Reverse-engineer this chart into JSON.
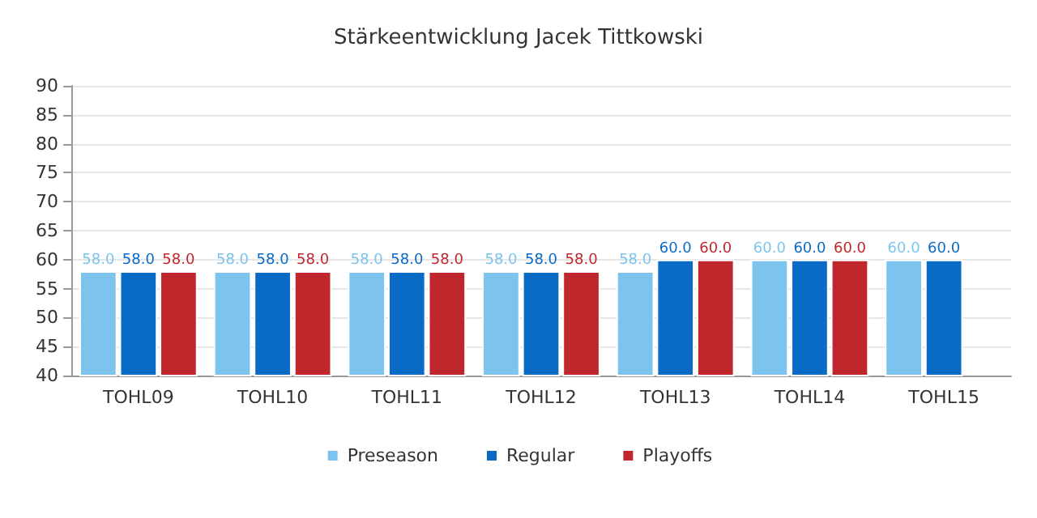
{
  "chart_data": {
    "type": "bar",
    "title": "Stärkeentwicklung Jacek Tittkowski",
    "categories": [
      "TOHL09",
      "TOHL10",
      "TOHL11",
      "TOHL12",
      "TOHL13",
      "TOHL14",
      "TOHL15"
    ],
    "series": [
      {
        "name": "Preseason",
        "color": "#7cc4ee",
        "values": [
          58,
          58,
          58,
          58,
          58,
          60,
          60
        ],
        "value_labels": [
          "58.0",
          "58.0",
          "58.0",
          "58.0",
          "58.0",
          "60.0",
          "60.0"
        ]
      },
      {
        "name": "Regular",
        "color": "#0a6bc6",
        "values": [
          58,
          58,
          58,
          58,
          60,
          60,
          60
        ],
        "value_labels": [
          "58.0",
          "58.0",
          "58.0",
          "58.0",
          "60.0",
          "60.0",
          "60.0"
        ]
      },
      {
        "name": "Playoffs",
        "color": "#c0272d",
        "values": [
          58,
          58,
          58,
          58,
          60,
          60,
          null
        ],
        "value_labels": [
          "58.0",
          "58.0",
          "58.0",
          "58.0",
          "60.0",
          "60.0",
          null
        ]
      }
    ],
    "ylim": [
      40,
      90
    ],
    "yticks": [
      40,
      45,
      50,
      55,
      60,
      65,
      70,
      75,
      80,
      85,
      90
    ],
    "grid": "y",
    "legend": "bottom"
  }
}
